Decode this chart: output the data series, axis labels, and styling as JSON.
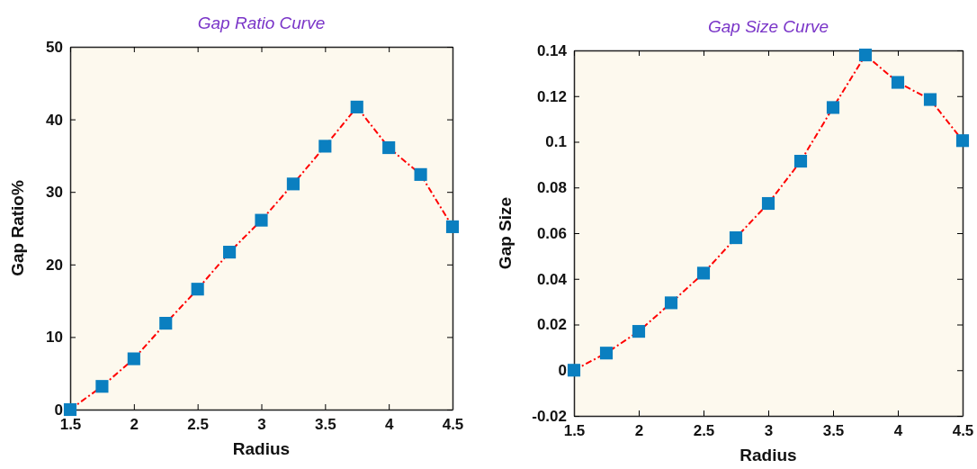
{
  "chart_data": [
    {
      "type": "line",
      "title": "Gap Ratio Curve",
      "xlabel": "Radius",
      "ylabel": "Gap Ratio%",
      "x": [
        1.5,
        1.75,
        2,
        2.25,
        2.5,
        2.75,
        3,
        3.25,
        3.5,
        3.75,
        4,
        4.25,
        4.5
      ],
      "series": [
        {
          "color": "#ff0000",
          "values": [
            0,
            3.2,
            7,
            11.9,
            16.6,
            21.7,
            26.1,
            31.1,
            36.3,
            41.7,
            36.1,
            32.4,
            25.2
          ]
        }
      ],
      "marker": "square",
      "line_style": "dashed",
      "xlim": [
        1.5,
        4.5
      ],
      "xticks": [
        1.5,
        2,
        2.5,
        3,
        3.5,
        4,
        4.5
      ],
      "ylim": [
        0,
        50
      ],
      "yticks": [
        0,
        10,
        20,
        30,
        40,
        50
      ],
      "grid": false
    },
    {
      "type": "line",
      "title": "Gap Size Curve",
      "xlabel": "Radius",
      "ylabel": "Gap Size",
      "x": [
        1.5,
        1.75,
        2,
        2.25,
        2.5,
        2.75,
        3,
        3.25,
        3.5,
        3.75,
        4,
        4.25,
        4.5
      ],
      "series": [
        {
          "color": "#ff0000",
          "values": [
            0,
            0.0075,
            0.017,
            0.0295,
            0.0425,
            0.058,
            0.073,
            0.0915,
            0.115,
            0.138,
            0.126,
            0.1185,
            0.1005
          ]
        }
      ],
      "marker": "square",
      "line_style": "dashed",
      "xlim": [
        1.5,
        4.5
      ],
      "xticks": [
        1.5,
        2,
        2.5,
        3,
        3.5,
        4,
        4.5
      ],
      "ylim": [
        -0.02,
        0.14
      ],
      "yticks": [
        -0.02,
        0,
        0.02,
        0.04,
        0.06,
        0.08,
        0.1,
        0.12,
        0.14
      ],
      "grid": false
    }
  ]
}
